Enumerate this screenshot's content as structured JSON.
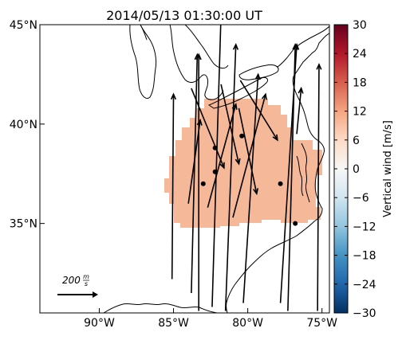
{
  "title": "2014/05/13 01:30:00 UT",
  "map": {
    "lon_range": [
      -94,
      -74.5
    ],
    "lat_range": [
      30.5,
      45
    ],
    "lon_ticks": [
      {
        "value": -90,
        "label": "90°W"
      },
      {
        "value": -85,
        "label": "85°W"
      },
      {
        "value": -80,
        "label": "80°W"
      },
      {
        "value": -75,
        "label": "75°W"
      }
    ],
    "lat_ticks": [
      {
        "value": 45,
        "label": "45°N"
      },
      {
        "value": 40,
        "label": "40°N"
      },
      {
        "value": 35,
        "label": "35°N"
      }
    ],
    "region_color": "#f5b899",
    "region_value_m_s": 7
  },
  "colorbar": {
    "label": "Vertical wind [m/s]",
    "range": [
      -30,
      30
    ],
    "ticks": [
      30,
      24,
      18,
      12,
      6,
      0,
      -6,
      -12,
      -18,
      -24,
      -30
    ],
    "tick_labels": [
      "30",
      "24",
      "18",
      "12",
      "6",
      "0",
      "−6",
      "−12",
      "−18",
      "−24",
      "−30"
    ],
    "colors": [
      "#67001f",
      "#b2182b",
      "#d6604d",
      "#f4a582",
      "#fddbc7",
      "#f7f7f7",
      "#d1e5f0",
      "#92c5de",
      "#4393c3",
      "#2166ac",
      "#053061"
    ]
  },
  "scale_arrow": {
    "value": "200",
    "numerator": "m",
    "denominator": "s"
  },
  "stations": [
    {
      "lon": -82.2,
      "lat": 38.8
    },
    {
      "lon": -80.4,
      "lat": 39.4
    },
    {
      "lon": -82.2,
      "lat": 37.6
    },
    {
      "lon": -83.0,
      "lat": 37.0
    },
    {
      "lon": -77.8,
      "lat": 37.0
    },
    {
      "lon": -76.8,
      "lat": 35.0
    }
  ],
  "wind_vectors": [
    {
      "lon0": -85.1,
      "lat0": 32.2,
      "lon1": -85.0,
      "lat1": 41.5
    },
    {
      "lon0": -83.8,
      "lat0": 31.5,
      "lat1": 43.5,
      "lon1": -83.4
    },
    {
      "lon0": -83.3,
      "lat0": 30.6,
      "lon1": -83.3,
      "lat1": 43.5
    },
    {
      "lon0": -82.4,
      "lat0": 30.8,
      "lon1": -81.8,
      "lat1": 45.5
    },
    {
      "lon0": -81.5,
      "lat0": 30.6,
      "lon1": -80.8,
      "lat1": 44.0
    },
    {
      "lon0": -80.3,
      "lat0": 31.0,
      "lon1": -79.3,
      "lat1": 42.5
    },
    {
      "lon0": -77.8,
      "lat0": 31.0,
      "lon1": -76.7,
      "lat1": 44.0
    },
    {
      "lon0": -77.3,
      "lat0": 30.6,
      "lon1": -76.8,
      "lat1": 44.0
    },
    {
      "lon0": -75.3,
      "lat0": 30.6,
      "lon1": -75.2,
      "lat1": 43.0
    },
    {
      "lon0": -84.0,
      "lat0": 36.0,
      "lon1": -83.2,
      "lat1": 40.2
    },
    {
      "lon0": -82.7,
      "lat0": 35.8,
      "lon1": -80.8,
      "lat1": 41.0
    },
    {
      "lon0": -81.0,
      "lat0": 35.3,
      "lon1": -78.8,
      "lat1": 41.5
    },
    {
      "lon0": -83.8,
      "lat0": 41.8,
      "lon1": -81.6,
      "lat1": 37.8
    },
    {
      "lon0": -81.8,
      "lat0": 42.0,
      "lon1": -80.6,
      "lat1": 38.0
    },
    {
      "lon0": -80.6,
      "lat0": 40.8,
      "lon1": -79.4,
      "lat1": 36.5
    },
    {
      "lon0": -80.5,
      "lat0": 42.2,
      "lon1": -78.0,
      "lat1": 39.2
    },
    {
      "lon0": -76.7,
      "lat0": 39.5,
      "lon1": -76.4,
      "lat1": 41.8
    }
  ]
}
